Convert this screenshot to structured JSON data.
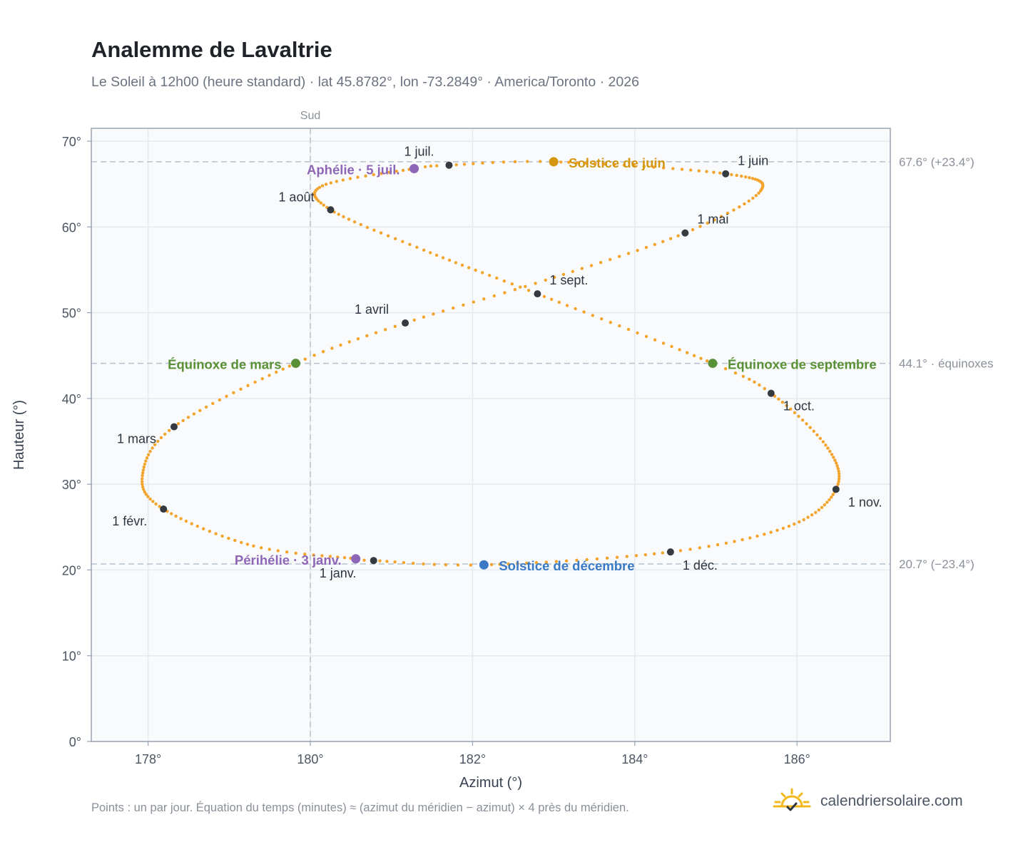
{
  "header": {
    "title": "Analemme de Lavaltrie",
    "subtitle": "Le Soleil à 12h00 (heure standard) · lat 45.8782°, lon -73.2849° · America/Toronto · 2026"
  },
  "footer": {
    "note": "Points : un par jour. Équation du temps (minutes) ≈ (azimut du méridien − azimut) × 4 près du méridien.",
    "brand": "calendriersolaire.com"
  },
  "colors": {
    "curve": "#f2a42c",
    "month_marker": "#343a40",
    "solstice_june": "#d4960f",
    "solstice_december": "#3a7ac4",
    "equinox": "#5a9136",
    "apsis": "#8e66b8",
    "reference_line": "#b8c2cf",
    "plot_background": "#f8fafc",
    "plot_border": "#99a3b3",
    "grid": "#e5e9f0"
  },
  "chart_data": {
    "type": "scatter",
    "xlabel": "Azimut (°)",
    "ylabel": "Hauteur (°)",
    "xlim": [
      177.3,
      187.15
    ],
    "ylim": [
      0,
      71.5
    ],
    "xticks": [
      {
        "value": 178,
        "label": "178°"
      },
      {
        "value": 180,
        "label": "180°"
      },
      {
        "value": 182,
        "label": "182°"
      },
      {
        "value": 184,
        "label": "184°"
      },
      {
        "value": 186,
        "label": "186°"
      }
    ],
    "yticks": [
      {
        "value": 0,
        "label": "0°"
      },
      {
        "value": 10,
        "label": "10°"
      },
      {
        "value": 20,
        "label": "20°"
      },
      {
        "value": 30,
        "label": "30°"
      },
      {
        "value": 40,
        "label": "40°"
      },
      {
        "value": 50,
        "label": "50°"
      },
      {
        "value": 60,
        "label": "60°"
      },
      {
        "value": 70,
        "label": "70°"
      }
    ],
    "grid": true,
    "south_line": {
      "x": 180,
      "label": "Sud"
    },
    "reference_lines": [
      {
        "y": 67.6,
        "label": "67.6° (+23.4°)"
      },
      {
        "y": 44.1,
        "label": "44.1° · équinoxes"
      },
      {
        "y": 20.7,
        "label": "20.7° (−23.4°)"
      }
    ],
    "month_points": [
      {
        "label": "1 janv.",
        "x": 180.78,
        "y": 21.1,
        "anchor": "start",
        "dx": -76,
        "dy": 24
      },
      {
        "label": "1 févr.",
        "x": 178.19,
        "y": 27.1,
        "anchor": "start",
        "dx": -72,
        "dy": 23
      },
      {
        "label": "1 mars",
        "x": 178.32,
        "y": 36.7,
        "anchor": "start",
        "dx": -80,
        "dy": 23
      },
      {
        "label": "1 avril",
        "x": 181.17,
        "y": 48.8,
        "anchor": "start",
        "dx": -71,
        "dy": -13
      },
      {
        "label": "1 mai",
        "x": 184.62,
        "y": 59.3,
        "anchor": "start",
        "dx": 17,
        "dy": -13
      },
      {
        "label": "1 juin",
        "x": 185.12,
        "y": 66.2,
        "anchor": "start",
        "dx": 17,
        "dy": -12
      },
      {
        "label": "1 juil.",
        "x": 181.71,
        "y": 67.2,
        "anchor": "start",
        "dx": -63,
        "dy": -13
      },
      {
        "label": "1 août",
        "x": 180.25,
        "y": 62.0,
        "anchor": "start",
        "dx": -73,
        "dy": -12
      },
      {
        "label": "1 sept.",
        "x": 182.8,
        "y": 52.2,
        "anchor": "start",
        "dx": 17,
        "dy": -13
      },
      {
        "label": "1 oct.",
        "x": 185.68,
        "y": 40.6,
        "anchor": "start",
        "dx": 17,
        "dy": 24
      },
      {
        "label": "1 nov.",
        "x": 186.48,
        "y": 29.4,
        "anchor": "start",
        "dx": 17,
        "dy": 24
      },
      {
        "label": "1 déc.",
        "x": 184.44,
        "y": 22.1,
        "anchor": "start",
        "dx": 17,
        "dy": 25
      }
    ],
    "events": [
      {
        "label": "Solstice de juin",
        "x": 183.0,
        "y": 67.6,
        "color": "#d4960f",
        "anchor": "start",
        "dx": 21,
        "dy": 8
      },
      {
        "label": "Solstice de décembre",
        "x": 182.14,
        "y": 20.6,
        "color": "#3a7ac4",
        "anchor": "start",
        "dx": 21,
        "dy": 8
      },
      {
        "label": "Équinoxe de mars",
        "x": 179.82,
        "y": 44.1,
        "color": "#5a9136",
        "anchor": "end",
        "dx": -20,
        "dy": 8
      },
      {
        "label": "Équinoxe de septembre",
        "x": 184.96,
        "y": 44.1,
        "color": "#5a9136",
        "anchor": "start",
        "dx": 21,
        "dy": 8
      },
      {
        "label": "Périhélie · 3 janv.",
        "x": 180.56,
        "y": 21.3,
        "color": "#8e66b8",
        "anchor": "end",
        "dx": -20,
        "dy": 8
      },
      {
        "label": "Aphélie · 5 juil.",
        "x": 181.28,
        "y": 66.8,
        "color": "#8e66b8",
        "anchor": "end",
        "dx": -20,
        "dy": 8
      }
    ],
    "analemma_path": [
      {
        "day": 1,
        "x": 180.78,
        "y": 21.1
      },
      {
        "day": 3,
        "x": 180.56,
        "y": 21.3
      },
      {
        "day": 16,
        "x": 179.3,
        "y": 22.8
      },
      {
        "day": 32,
        "x": 178.19,
        "y": 27.1
      },
      {
        "day": 45,
        "x": 177.93,
        "y": 31.0
      },
      {
        "day": 60,
        "x": 178.32,
        "y": 36.7
      },
      {
        "day": 79,
        "x": 179.82,
        "y": 44.1
      },
      {
        "day": 91,
        "x": 181.17,
        "y": 48.8
      },
      {
        "day": 105,
        "x": 182.9,
        "y": 53.8
      },
      {
        "day": 121,
        "x": 184.62,
        "y": 59.3
      },
      {
        "day": 135,
        "x": 185.55,
        "y": 64.2
      },
      {
        "day": 152,
        "x": 185.12,
        "y": 66.2
      },
      {
        "day": 172,
        "x": 183.0,
        "y": 67.6
      },
      {
        "day": 182,
        "x": 181.71,
        "y": 67.2
      },
      {
        "day": 186,
        "x": 181.28,
        "y": 66.8
      },
      {
        "day": 200,
        "x": 180.15,
        "y": 64.8
      },
      {
        "day": 213,
        "x": 180.25,
        "y": 62.0
      },
      {
        "day": 228,
        "x": 181.4,
        "y": 57.3
      },
      {
        "day": 244,
        "x": 182.8,
        "y": 52.2
      },
      {
        "day": 266,
        "x": 184.96,
        "y": 44.1
      },
      {
        "day": 274,
        "x": 185.68,
        "y": 40.6
      },
      {
        "day": 290,
        "x": 186.38,
        "y": 34.2
      },
      {
        "day": 305,
        "x": 186.48,
        "y": 29.4
      },
      {
        "day": 320,
        "x": 185.9,
        "y": 25.1
      },
      {
        "day": 335,
        "x": 184.44,
        "y": 22.1
      },
      {
        "day": 355,
        "x": 182.14,
        "y": 20.6
      },
      {
        "day": 366,
        "x": 180.78,
        "y": 21.1
      }
    ]
  }
}
